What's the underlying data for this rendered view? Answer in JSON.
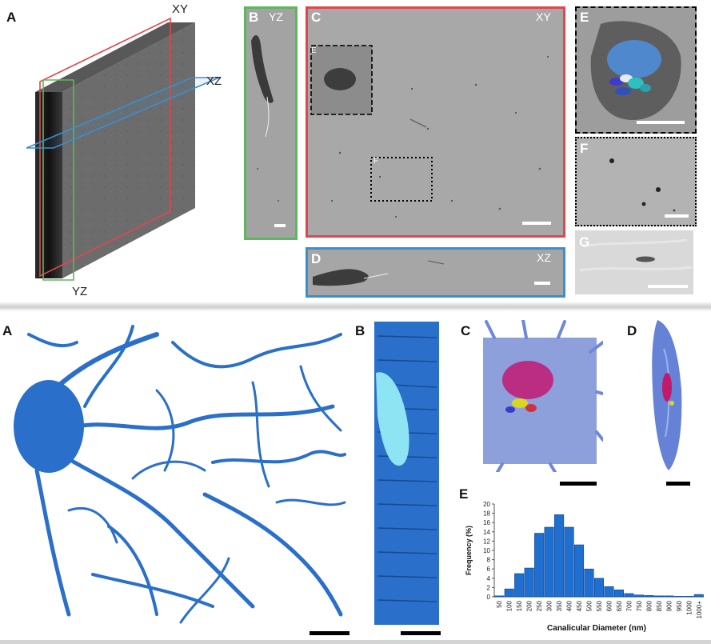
{
  "top": {
    "panels": {
      "A": "A",
      "B": "B",
      "C": "C",
      "D": "D",
      "E": "E",
      "F": "F",
      "G": "G"
    },
    "plane_labels": {
      "xy": "XY",
      "xz": "XZ",
      "yz": "YZ"
    },
    "corner_labels": {
      "b": "YZ",
      "c": "XY",
      "d": "XZ"
    },
    "inset_labels": {
      "e": "E",
      "f": "F"
    }
  },
  "bottom": {
    "panels": {
      "A": "A",
      "B": "B",
      "C": "C",
      "D": "D",
      "E": "E"
    }
  },
  "colors": {
    "xy_frame": "#e0474c",
    "yz_frame": "#5cb85c",
    "xz_frame": "#3b8fd1",
    "network": "#2a6fc9",
    "histogram_bar": "#1f6fd1"
  },
  "chart_data": {
    "type": "bar",
    "xlabel": "Canalicular Diameter (nm)",
    "ylabel": "Frequency (%)",
    "ylim": [
      0,
      20
    ],
    "yticks": [
      "0",
      "2",
      "4",
      "6",
      "8",
      "10",
      "12",
      "14",
      "16",
      "18",
      "20"
    ],
    "categories": [
      "50",
      "100",
      "150",
      "200",
      "250",
      "300",
      "350",
      "400",
      "450",
      "500",
      "550",
      "600",
      "650",
      "700",
      "750",
      "800",
      "850",
      "900",
      "950",
      "1000",
      "1000+"
    ],
    "values": [
      0.2,
      1.7,
      5.0,
      6.2,
      13.7,
      15.0,
      17.7,
      15.0,
      11.2,
      6.0,
      4.0,
      2.2,
      1.5,
      0.7,
      0.4,
      0.3,
      0.2,
      0.2,
      0.1,
      0.1,
      0.5
    ]
  }
}
